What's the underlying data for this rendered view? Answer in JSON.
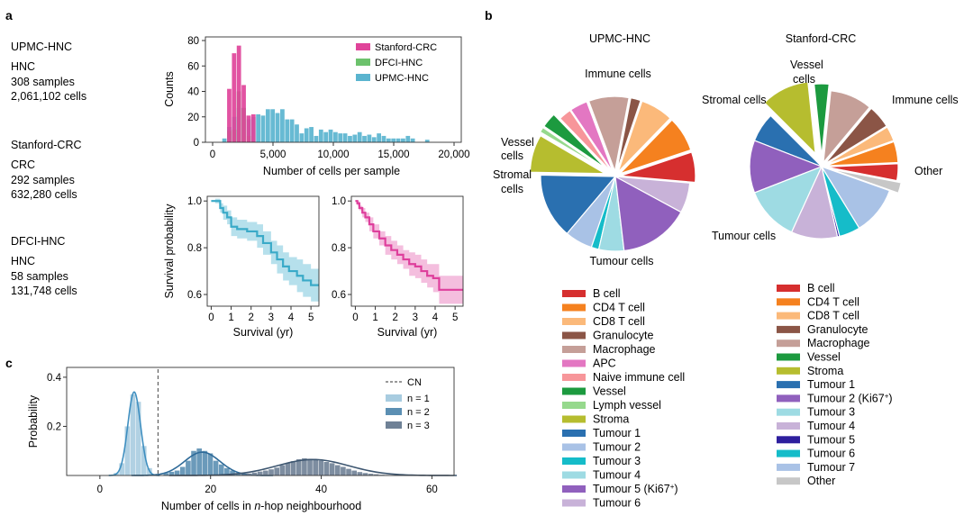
{
  "panels": {
    "a": "a",
    "b": "b",
    "c": "c"
  },
  "cohorts": [
    {
      "name": "UPMC-HNC",
      "type": "HNC",
      "samples": "308 samples",
      "cells": "2,061,102 cells"
    },
    {
      "name": "Stanford-CRC",
      "type": "CRC",
      "samples": "292 samples",
      "cells": "632,280 cells"
    },
    {
      "name": "DFCI-HNC",
      "type": "HNC",
      "samples": "58 samples",
      "cells": "131,748 cells"
    }
  ],
  "colors": {
    "stanford": "#e0449a",
    "dfci": "#6cc26c",
    "upmc": "#5ab4cf",
    "survival1": "#3aaac8",
    "survival1_ci": "#a9dbe9",
    "survival2": "#de3f9c",
    "survival2_ci": "#f2b3d8",
    "hop1": "#a8cce0",
    "hop2": "#5b8fb3",
    "hop3": "#6f8196"
  },
  "hist": {
    "ylabel": "Counts",
    "xlabel": "Number of cells per sample",
    "xticks": [
      "0",
      "5,000",
      "10,000",
      "15,000",
      "20,000"
    ],
    "yticks": [
      "0",
      "20",
      "40",
      "60",
      "80"
    ],
    "legend": [
      "Stanford-CRC",
      "DFCI-HNC",
      "UPMC-HNC"
    ],
    "chart_data": {
      "type": "bar",
      "title": "",
      "xlabel": "Number of cells per sample",
      "ylabel": "Counts",
      "xlim": [
        0,
        20000
      ],
      "ylim": [
        0,
        80
      ],
      "bin_width": 400,
      "series": [
        {
          "name": "UPMC-HNC",
          "bins": [
            [
              800,
              3
            ],
            [
              1200,
              12
            ],
            [
              1600,
              20
            ],
            [
              2000,
              27
            ],
            [
              2400,
              27
            ],
            [
              2800,
              18
            ],
            [
              3200,
              20
            ],
            [
              3600,
              22
            ],
            [
              4000,
              21
            ],
            [
              4400,
              26
            ],
            [
              4800,
              26
            ],
            [
              5200,
              23
            ],
            [
              5600,
              26
            ],
            [
              6000,
              18
            ],
            [
              6400,
              18
            ],
            [
              6800,
              14
            ],
            [
              7200,
              7
            ],
            [
              7600,
              11
            ],
            [
              8000,
              12
            ],
            [
              8400,
              5
            ],
            [
              8800,
              10
            ],
            [
              9200,
              8
            ],
            [
              9600,
              10
            ],
            [
              10000,
              8
            ],
            [
              10400,
              7
            ],
            [
              10800,
              7
            ],
            [
              11200,
              5
            ],
            [
              11600,
              6
            ],
            [
              12000,
              8
            ],
            [
              12400,
              5
            ],
            [
              12800,
              6
            ],
            [
              13200,
              4
            ],
            [
              13600,
              7
            ],
            [
              14000,
              5
            ],
            [
              14400,
              3
            ],
            [
              14800,
              3
            ],
            [
              15200,
              3
            ],
            [
              15600,
              3
            ],
            [
              16000,
              5
            ],
            [
              16400,
              3
            ],
            [
              17600,
              2
            ]
          ]
        },
        {
          "name": "DFCI-HNC",
          "bins": [
            [
              1200,
              9
            ],
            [
              1600,
              10
            ],
            [
              2000,
              40
            ],
            [
              2400,
              27
            ],
            [
              2800,
              5
            ]
          ]
        },
        {
          "name": "Stanford-CRC",
          "bins": [
            [
              1200,
              42
            ],
            [
              1600,
              70
            ],
            [
              2000,
              76
            ],
            [
              2400,
              45
            ],
            [
              2800,
              21
            ],
            [
              3200,
              22
            ]
          ]
        }
      ]
    }
  },
  "survival": [
    {
      "ylabel": "Survival probability",
      "xlabel": "Survival (yr)",
      "xticks": [
        "0",
        "1",
        "2",
        "3",
        "4",
        "5"
      ],
      "yticks": [
        "0.6",
        "0.8",
        "1.0"
      ],
      "chart_data": {
        "type": "line",
        "title": "",
        "xlabel": "Survival (yr)",
        "ylabel": "Survival probability",
        "xlim": [
          -0.2,
          5.4
        ],
        "ylim": [
          0.55,
          1.02
        ],
        "x": [
          0,
          0.2,
          0.45,
          0.6,
          0.8,
          1.0,
          1.3,
          1.8,
          2.3,
          2.6,
          3.0,
          3.3,
          3.6,
          3.9,
          4.3,
          4.6,
          5.0,
          5.4
        ],
        "y": [
          1.0,
          1.0,
          0.97,
          0.95,
          0.93,
          0.89,
          0.88,
          0.87,
          0.85,
          0.82,
          0.78,
          0.75,
          0.72,
          0.7,
          0.68,
          0.66,
          0.64,
          0.64
        ],
        "ci_width": [
          0.0,
          0.01,
          0.02,
          0.03,
          0.03,
          0.04,
          0.04,
          0.04,
          0.05,
          0.05,
          0.05,
          0.06,
          0.06,
          0.06,
          0.07,
          0.07,
          0.07,
          0.07
        ]
      }
    },
    {
      "xlabel": "Survival (yr)",
      "xticks": [
        "0",
        "1",
        "2",
        "3",
        "4",
        "5"
      ],
      "yticks": [
        "0.6",
        "0.8",
        "1.0"
      ],
      "chart_data": {
        "type": "line",
        "title": "",
        "xlabel": "Survival (yr)",
        "ylabel": "",
        "xlim": [
          -0.2,
          5.4
        ],
        "ylim": [
          0.55,
          1.02
        ],
        "x": [
          0,
          0.1,
          0.2,
          0.35,
          0.5,
          0.7,
          0.9,
          1.2,
          1.5,
          1.8,
          2.1,
          2.4,
          2.7,
          3.0,
          3.3,
          3.6,
          3.9,
          4.2,
          4.5,
          5.4
        ],
        "y": [
          1.0,
          0.99,
          0.97,
          0.95,
          0.93,
          0.9,
          0.87,
          0.84,
          0.81,
          0.79,
          0.77,
          0.75,
          0.73,
          0.72,
          0.7,
          0.68,
          0.67,
          0.62,
          0.62,
          0.62
        ],
        "ci_width": [
          0.0,
          0.01,
          0.01,
          0.02,
          0.02,
          0.03,
          0.03,
          0.03,
          0.04,
          0.04,
          0.04,
          0.04,
          0.05,
          0.05,
          0.05,
          0.05,
          0.06,
          0.06,
          0.06,
          0.06
        ]
      }
    }
  ],
  "pies": [
    {
      "title": "UPMC-HNC",
      "groups": [
        "Immune cells",
        "Vessel cells",
        "Stromal cells",
        "Tumour cells"
      ],
      "legend": [
        "B cell",
        "CD4 T cell",
        "CD8 T cell",
        "Granulocyte",
        "Macrophage",
        "APC",
        "Naive immune cell",
        "Vessel",
        "Lymph vessel",
        "Stroma",
        "Tumour 1",
        "Tumour 2",
        "Tumour 3",
        "Tumour 4",
        "Tumour 5 (Ki67",
        "Tumour 6"
      ],
      "superscript": "+",
      "superscript_suffix": ")",
      "chart_data": {
        "type": "pie",
        "title": "UPMC-HNC",
        "slices": [
          {
            "label": "B cell",
            "value": 6.0,
            "color": "#d62f2f",
            "group": "Immune cells"
          },
          {
            "label": "CD4 T cell",
            "value": 7.0,
            "color": "#f5811f",
            "group": "Immune cells"
          },
          {
            "label": "CD8 T cell",
            "value": 6.5,
            "color": "#fbb97a",
            "group": "Immune cells"
          },
          {
            "label": "Granulocyte",
            "value": 2.0,
            "color": "#8b5546",
            "group": "Immune cells"
          },
          {
            "label": "Macrophage",
            "value": 8.0,
            "color": "#c59f98",
            "group": "Immune cells"
          },
          {
            "label": "APC",
            "value": 3.5,
            "color": "#e377c2",
            "group": "Immune cells"
          },
          {
            "label": "Naive immune cell",
            "value": 2.5,
            "color": "#f7969a",
            "group": "Immune cells"
          },
          {
            "label": "Vessel",
            "value": 3.0,
            "color": "#1c9a3f",
            "group": "Vessel cells"
          },
          {
            "label": "Lymph vessel",
            "value": 1.0,
            "color": "#96d98d",
            "group": "Vessel cells"
          },
          {
            "label": "Stroma",
            "value": 7.5,
            "color": "#b6bd2f",
            "group": "Stromal cells"
          },
          {
            "label": "Tumour 1",
            "value": 13.0,
            "color": "#2a70b0",
            "group": "Tumour cells"
          },
          {
            "label": "Tumour 2",
            "value": 5.5,
            "color": "#a9c2e6",
            "group": "Tumour cells"
          },
          {
            "label": "Tumour 3",
            "value": 1.5,
            "color": "#15bcc9",
            "group": "Tumour cells"
          },
          {
            "label": "Tumour 4",
            "value": 5.0,
            "color": "#9edbe3",
            "group": "Tumour cells"
          },
          {
            "label": "Tumour 5 (Ki67+)",
            "value": 14.0,
            "color": "#9060bd",
            "group": "Tumour cells"
          },
          {
            "label": "Tumour 6",
            "value": 6.0,
            "color": "#c8b2d8",
            "group": "Tumour cells"
          }
        ]
      }
    },
    {
      "title": "Stanford-CRC",
      "groups": [
        "Vessel cells",
        "Immune cells",
        "Stromal cells",
        "Other",
        "Tumour cells"
      ],
      "legend": [
        "B cell",
        "CD4 T cell",
        "CD8 T cell",
        "Granulocyte",
        "Macrophage",
        "Vessel",
        "Stroma",
        "Tumour 1",
        "Tumour 2 (Ki67",
        "Tumour 3",
        "Tumour 4",
        "Tumour 5",
        "Tumour 6",
        "Tumour 7",
        "Other"
      ],
      "superscript": "+",
      "superscript_suffix": ")",
      "chart_data": {
        "type": "pie",
        "title": "Stanford-CRC",
        "slices": [
          {
            "label": "B cell",
            "value": 4.0,
            "color": "#d62f2f",
            "group": "Immune cells"
          },
          {
            "label": "CD4 T cell",
            "value": 5.0,
            "color": "#f5811f",
            "group": "Immune cells"
          },
          {
            "label": "CD8 T cell",
            "value": 3.5,
            "color": "#fbb97a",
            "group": "Immune cells"
          },
          {
            "label": "Granulocyte",
            "value": 5.5,
            "color": "#8b5546",
            "group": "Immune cells"
          },
          {
            "label": "Macrophage",
            "value": 10.0,
            "color": "#c59f98",
            "group": "Immune cells"
          },
          {
            "label": "Vessel",
            "value": 3.5,
            "color": "#1c9a3f",
            "group": "Vessel cells"
          },
          {
            "label": "Stroma",
            "value": 11.5,
            "color": "#b6bd2f",
            "group": "Stromal cells"
          },
          {
            "label": "Tumour 1",
            "value": 7.0,
            "color": "#2a70b0",
            "group": "Tumour cells"
          },
          {
            "label": "Tumour 2 (Ki67+)",
            "value": 12.5,
            "color": "#9060bd",
            "group": "Tumour cells"
          },
          {
            "label": "Tumour 3",
            "value": 13.0,
            "color": "#9edbe3",
            "group": "Tumour cells"
          },
          {
            "label": "Tumour 4",
            "value": 11.0,
            "color": "#c8b2d8",
            "group": "Tumour cells"
          },
          {
            "label": "Tumour 5",
            "value": 0.5,
            "color": "#2e1f9e",
            "group": "Tumour cells"
          },
          {
            "label": "Tumour 6",
            "value": 5.0,
            "color": "#15bcc9",
            "group": "Tumour cells"
          },
          {
            "label": "Tumour 7",
            "value": 11.5,
            "color": "#a9c2e6",
            "group": "Tumour cells"
          },
          {
            "label": "Other",
            "value": 2.5,
            "color": "#c7c7c7",
            "group": "Other"
          }
        ]
      }
    }
  ],
  "hop": {
    "ylabel": "Probability",
    "xlabel_pre": "Number of cells in ",
    "xlabel_italic": "n",
    "xlabel_post": "-hop neighbourhood",
    "xticks": [
      "0",
      "20",
      "40",
      "60"
    ],
    "yticks": [
      "0.2",
      "0.4"
    ],
    "legend": [
      {
        "label": "CN",
        "style": "dashed"
      },
      {
        "label": "n = 1"
      },
      {
        "label": "n = 2"
      },
      {
        "label": "n = 3"
      }
    ],
    "chart_data": {
      "type": "bar",
      "title": "",
      "xlabel": "Number of cells in n-hop neighbourhood",
      "ylabel": "Probability",
      "xlim": [
        -6,
        64
      ],
      "ylim": [
        0,
        0.44
      ],
      "cn_line_x": 10.5,
      "series": [
        {
          "name": "n = 1",
          "bins": [
            [
              3,
              0.01
            ],
            [
              4,
              0.05
            ],
            [
              5,
              0.2
            ],
            [
              6,
              0.33
            ],
            [
              7,
              0.3
            ],
            [
              8,
              0.12
            ],
            [
              9,
              0.03
            ]
          ],
          "fit": {
            "mean": 6.2,
            "sd": 1.15,
            "peak": 0.34
          }
        },
        {
          "name": "n = 2",
          "bins": [
            [
              12,
              0.01
            ],
            [
              13,
              0.015
            ],
            [
              14,
              0.02
            ],
            [
              15,
              0.035
            ],
            [
              16,
              0.06
            ],
            [
              17,
              0.1
            ],
            [
              18,
              0.11
            ],
            [
              19,
              0.1
            ],
            [
              20,
              0.09
            ],
            [
              21,
              0.06
            ],
            [
              22,
              0.045
            ],
            [
              23,
              0.03
            ],
            [
              24,
              0.02
            ],
            [
              25,
              0.01
            ],
            [
              26,
              0.008
            ]
          ],
          "fit": {
            "mean": 18.5,
            "sd": 3.2,
            "peak": 0.095
          }
        },
        {
          "name": "n = 3",
          "bins": [
            [
              26,
              0.005
            ],
            [
              27,
              0.008
            ],
            [
              28,
              0.012
            ],
            [
              29,
              0.016
            ],
            [
              30,
              0.02
            ],
            [
              31,
              0.025
            ],
            [
              32,
              0.032
            ],
            [
              33,
              0.042
            ],
            [
              34,
              0.05
            ],
            [
              35,
              0.058
            ],
            [
              36,
              0.066
            ],
            [
              37,
              0.07
            ],
            [
              38,
              0.068
            ],
            [
              39,
              0.064
            ],
            [
              40,
              0.06
            ],
            [
              41,
              0.055
            ],
            [
              42,
              0.05
            ],
            [
              43,
              0.042
            ],
            [
              44,
              0.035
            ],
            [
              45,
              0.027
            ],
            [
              46,
              0.02
            ],
            [
              47,
              0.014
            ],
            [
              48,
              0.01
            ],
            [
              49,
              0.007
            ],
            [
              50,
              0.005
            ],
            [
              51,
              0.003
            ],
            [
              52,
              0.002
            ]
          ],
          "fit": {
            "mean": 38.5,
            "sd": 6.5,
            "peak": 0.065
          }
        }
      ]
    }
  }
}
